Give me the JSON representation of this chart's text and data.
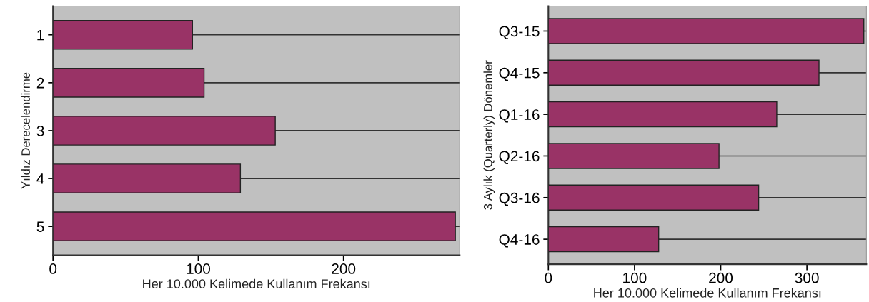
{
  "chart_data": [
    {
      "type": "bar",
      "orientation": "horizontal",
      "categories": [
        "1",
        "2",
        "3",
        "4",
        "5"
      ],
      "values": [
        96,
        104,
        153,
        129,
        277
      ],
      "color": "#993366",
      "xlim": [
        0,
        280
      ],
      "xticks": [
        0,
        100,
        200
      ],
      "xlabel": "Her 10.000 Kelimede Kullanım Frekansı",
      "ylabel": "Yıldız Derecelendirme",
      "grid": "y"
    },
    {
      "type": "bar",
      "orientation": "horizontal",
      "categories": [
        "Q3-15",
        "Q4-15",
        "Q1-16",
        "Q2-16",
        "Q3-16",
        "Q4-16"
      ],
      "values": [
        366,
        314,
        265,
        198,
        244,
        128
      ],
      "color": "#993366",
      "xlim": [
        0,
        369
      ],
      "xticks": [
        0,
        100,
        200,
        300
      ],
      "xlabel": "Her 10.000 Kelimede Kullanım Frekansı",
      "ylabel": "3 Aylık (Quarterly) Dönemler",
      "grid": "y"
    }
  ]
}
